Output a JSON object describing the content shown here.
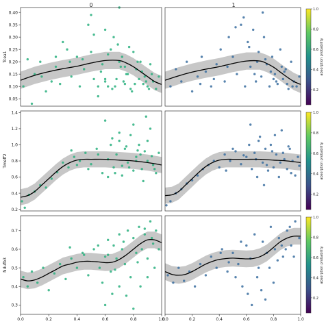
{
  "figure": {
    "column_titles": [
      "0",
      "1"
    ],
    "colorbar_label": "absorption probability",
    "colorbar_ticks": [
      "0.2",
      "0.4",
      "0.6",
      "0.8",
      "1.0"
    ],
    "colors": {
      "fit_line": "#000000",
      "ci_band": "#bdbdbd",
      "col0_points": "#2ab07f",
      "col1_points": "#3b6fa0",
      "colorbar_stops": [
        "#440154",
        "#3b528b",
        "#21918c",
        "#5ec962",
        "#fde725"
      ]
    },
    "x_ticks": [
      "0.0",
      "0.2",
      "0.4",
      "0.6",
      "0.8",
      "1.0"
    ]
  },
  "chart_data": [
    {
      "type": "scatter",
      "row": 0,
      "col": 0,
      "column_title": "0",
      "ylabel": "Tcea1",
      "xlim": [
        0,
        1
      ],
      "ylim": [
        0.02,
        0.42
      ],
      "yticks": [
        "0.05",
        "0.10",
        "0.15",
        "0.20",
        "0.25",
        "0.30",
        "0.35",
        "0.40"
      ],
      "fit": {
        "x": [
          0,
          0.1,
          0.2,
          0.3,
          0.4,
          0.5,
          0.6,
          0.7,
          0.75,
          0.8,
          0.85,
          0.9,
          0.95,
          1.0
        ],
        "y": [
          0.125,
          0.145,
          0.16,
          0.172,
          0.182,
          0.195,
          0.205,
          0.205,
          0.195,
          0.18,
          0.16,
          0.14,
          0.12,
          0.108
        ],
        "band": 0.035
      },
      "points": {
        "x": [
          0.02,
          0.05,
          0.1,
          0.14,
          0.18,
          0.22,
          0.25,
          0.28,
          0.3,
          0.33,
          0.36,
          0.4,
          0.42,
          0.45,
          0.48,
          0.5,
          0.52,
          0.55,
          0.58,
          0.6,
          0.62,
          0.64,
          0.66,
          0.68,
          0.7,
          0.71,
          0.72,
          0.74,
          0.75,
          0.77,
          0.78,
          0.8,
          0.82,
          0.84,
          0.85,
          0.87,
          0.88,
          0.9,
          0.92,
          0.94,
          0.96,
          0.98,
          0.55,
          0.6,
          0.65,
          0.7,
          0.73,
          0.76,
          0.79,
          0.81,
          0.86,
          0.89,
          0.91,
          0.6,
          0.62,
          0.5,
          0.35,
          0.25,
          0.15,
          0.08,
          0.44,
          0.52,
          0.57,
          0.67,
          0.69,
          0.74,
          0.83,
          0.93
        ],
        "y": [
          0.1,
          0.21,
          0.15,
          0.2,
          0.08,
          0.12,
          0.22,
          0.11,
          0.28,
          0.25,
          0.14,
          0.22,
          0.1,
          0.17,
          0.35,
          0.24,
          0.31,
          0.06,
          0.19,
          0.12,
          0.1,
          0.25,
          0.3,
          0.13,
          0.42,
          0.18,
          0.22,
          0.11,
          0.15,
          0.26,
          0.09,
          0.24,
          0.17,
          0.13,
          0.2,
          0.11,
          0.14,
          0.1,
          0.19,
          0.12,
          0.09,
          0.14,
          0.1,
          0.13,
          0.09,
          0.2,
          0.12,
          0.15,
          0.08,
          0.11,
          0.16,
          0.12,
          0.09,
          0.33,
          0.23,
          0.39,
          0.2,
          0.18,
          0.14,
          0.03,
          0.21,
          0.13,
          0.16,
          0.1,
          0.27,
          0.18,
          0.2,
          0.15
        ]
      }
    },
    {
      "type": "scatter",
      "row": 0,
      "col": 1,
      "column_title": "1",
      "ylabel": "",
      "xlim": [
        0,
        1
      ],
      "ylim": [
        0.02,
        0.42
      ],
      "yticks": [],
      "fit": {
        "x": [
          0,
          0.1,
          0.2,
          0.3,
          0.4,
          0.5,
          0.6,
          0.7,
          0.75,
          0.8,
          0.85,
          0.9,
          0.95,
          1.0
        ],
        "y": [
          0.125,
          0.143,
          0.158,
          0.17,
          0.18,
          0.193,
          0.203,
          0.203,
          0.193,
          0.178,
          0.158,
          0.138,
          0.12,
          0.108
        ],
        "band": 0.035
      },
      "points": {
        "x": [
          0.04,
          0.08,
          0.12,
          0.16,
          0.2,
          0.24,
          0.27,
          0.3,
          0.34,
          0.38,
          0.41,
          0.44,
          0.47,
          0.5,
          0.53,
          0.56,
          0.59,
          0.61,
          0.63,
          0.65,
          0.67,
          0.69,
          0.71,
          0.73,
          0.75,
          0.77,
          0.79,
          0.81,
          0.83,
          0.85,
          0.87,
          0.89,
          0.91,
          0.93,
          0.95,
          0.97,
          0.99,
          0.58,
          0.62,
          0.68,
          0.72,
          0.78,
          0.82,
          0.86,
          0.9,
          0.52,
          0.46,
          0.36,
          0.26,
          0.66,
          0.74,
          0.8,
          0.88,
          0.94
        ],
        "y": [
          0.1,
          0.17,
          0.12,
          0.2,
          0.08,
          0.14,
          0.22,
          0.16,
          0.1,
          0.19,
          0.25,
          0.12,
          0.3,
          0.22,
          0.15,
          0.35,
          0.1,
          0.28,
          0.18,
          0.33,
          0.12,
          0.24,
          0.14,
          0.3,
          0.19,
          0.1,
          0.22,
          0.15,
          0.11,
          0.25,
          0.13,
          0.17,
          0.09,
          0.2,
          0.12,
          0.1,
          0.14,
          0.38,
          0.26,
          0.2,
          0.4,
          0.16,
          0.12,
          0.18,
          0.11,
          0.34,
          0.18,
          0.13,
          0.11,
          0.15,
          0.21,
          0.13,
          0.16,
          0.1
        ]
      }
    },
    {
      "type": "scatter",
      "row": 1,
      "col": 0,
      "column_title": "0",
      "ylabel": "Tmeff2",
      "xlim": [
        0,
        1
      ],
      "ylim": [
        0.18,
        1.42
      ],
      "yticks": [
        "0.2",
        "0.4",
        "0.6",
        "0.8",
        "1.0",
        "1.2",
        "1.4"
      ],
      "fit": {
        "x": [
          0,
          0.05,
          0.1,
          0.15,
          0.2,
          0.25,
          0.3,
          0.35,
          0.4,
          0.45,
          0.5,
          0.6,
          0.7,
          0.8,
          0.9,
          1.0
        ],
        "y": [
          0.35,
          0.37,
          0.42,
          0.5,
          0.58,
          0.66,
          0.73,
          0.78,
          0.81,
          0.82,
          0.82,
          0.82,
          0.81,
          0.8,
          0.78,
          0.75
        ],
        "band": 0.1
      },
      "points": {
        "x": [
          0.01,
          0.03,
          0.06,
          0.1,
          0.14,
          0.18,
          0.22,
          0.26,
          0.3,
          0.34,
          0.38,
          0.42,
          0.46,
          0.5,
          0.54,
          0.58,
          0.62,
          0.64,
          0.66,
          0.68,
          0.7,
          0.72,
          0.74,
          0.76,
          0.78,
          0.8,
          0.82,
          0.84,
          0.86,
          0.88,
          0.9,
          0.92,
          0.94,
          0.96,
          0.98,
          0.6,
          0.65,
          0.7,
          0.75,
          0.8,
          0.85,
          0.9,
          0.95,
          0.62,
          0.72,
          0.82,
          0.87,
          0.93,
          0.55,
          0.48,
          0.4,
          0.36,
          0.67,
          0.77,
          0.83,
          0.89
        ],
        "y": [
          0.3,
          0.22,
          0.38,
          0.42,
          0.5,
          0.47,
          0.58,
          0.66,
          0.78,
          0.72,
          0.85,
          0.8,
          0.9,
          0.76,
          0.95,
          0.65,
          0.82,
          1.0,
          0.72,
          0.88,
          1.05,
          0.62,
          0.95,
          0.78,
          1.12,
          0.68,
          0.85,
          1.0,
          0.7,
          0.92,
          0.8,
          1.2,
          0.75,
          0.65,
          0.9,
          1.3,
          1.08,
          1.15,
          0.98,
          1.25,
          0.88,
          1.05,
          0.7,
          0.6,
          0.74,
          0.8,
          0.55,
          0.86,
          0.88,
          0.7,
          0.75,
          0.93,
          0.65,
          0.72,
          0.93,
          1.35
        ]
      }
    },
    {
      "type": "scatter",
      "row": 1,
      "col": 1,
      "column_title": "1",
      "ylabel": "",
      "xlim": [
        0,
        1
      ],
      "ylim": [
        0.18,
        1.42
      ],
      "yticks": [],
      "fit": {
        "x": [
          0,
          0.05,
          0.1,
          0.15,
          0.2,
          0.25,
          0.3,
          0.35,
          0.4,
          0.45,
          0.5,
          0.6,
          0.7,
          0.8,
          0.9,
          1.0
        ],
        "y": [
          0.37,
          0.38,
          0.42,
          0.5,
          0.58,
          0.66,
          0.73,
          0.78,
          0.81,
          0.82,
          0.82,
          0.82,
          0.82,
          0.81,
          0.8,
          0.78
        ],
        "band": 0.1
      },
      "points": {
        "x": [
          0.01,
          0.04,
          0.08,
          0.12,
          0.16,
          0.2,
          0.24,
          0.28,
          0.32,
          0.36,
          0.4,
          0.44,
          0.48,
          0.52,
          0.56,
          0.6,
          0.62,
          0.64,
          0.66,
          0.68,
          0.7,
          0.72,
          0.74,
          0.76,
          0.78,
          0.8,
          0.82,
          0.84,
          0.86,
          0.88,
          0.9,
          0.92,
          0.94,
          0.96,
          0.98,
          0.63,
          0.69,
          0.75,
          0.81,
          0.87,
          0.93,
          0.67,
          0.73,
          0.79,
          0.85,
          0.91,
          0.58,
          0.5,
          0.45,
          0.99
        ],
        "y": [
          0.25,
          0.3,
          0.4,
          0.45,
          0.52,
          0.56,
          0.62,
          0.7,
          0.75,
          0.8,
          0.72,
          0.88,
          0.8,
          0.92,
          0.76,
          0.85,
          1.0,
          0.7,
          0.9,
          0.6,
          1.1,
          0.78,
          0.95,
          0.68,
          1.0,
          0.72,
          0.88,
          0.6,
          1.18,
          0.82,
          0.7,
          0.95,
          0.8,
          0.62,
          0.85,
          1.25,
          1.05,
          0.75,
          1.12,
          0.9,
          0.65,
          0.82,
          0.5,
          0.92,
          0.78,
          0.98,
          0.87,
          0.95,
          0.68,
          0.74
        ]
      }
    },
    {
      "type": "scatter",
      "row": 2,
      "col": 0,
      "column_title": "0",
      "ylabel": "Ndufb3",
      "xlim": [
        0,
        1
      ],
      "ylim": [
        0.25,
        0.78
      ],
      "yticks": [
        "0.3",
        "0.4",
        "0.5",
        "0.6",
        "0.7"
      ],
      "fit": {
        "x": [
          0,
          0.05,
          0.1,
          0.15,
          0.2,
          0.25,
          0.3,
          0.35,
          0.4,
          0.45,
          0.5,
          0.55,
          0.6,
          0.65,
          0.7,
          0.75,
          0.8,
          0.85,
          0.9,
          0.95,
          1.0
        ],
        "y": [
          0.44,
          0.43,
          0.435,
          0.45,
          0.47,
          0.49,
          0.51,
          0.52,
          0.53,
          0.535,
          0.535,
          0.532,
          0.528,
          0.53,
          0.545,
          0.57,
          0.6,
          0.63,
          0.65,
          0.65,
          0.635
        ],
        "band": 0.045
      },
      "points": {
        "x": [
          0.02,
          0.05,
          0.08,
          0.12,
          0.16,
          0.2,
          0.24,
          0.28,
          0.32,
          0.36,
          0.4,
          0.44,
          0.48,
          0.52,
          0.56,
          0.58,
          0.6,
          0.62,
          0.64,
          0.66,
          0.68,
          0.7,
          0.72,
          0.74,
          0.76,
          0.78,
          0.8,
          0.82,
          0.84,
          0.86,
          0.88,
          0.9,
          0.92,
          0.94,
          0.96,
          0.98,
          0.6,
          0.65,
          0.7,
          0.75,
          0.8,
          0.85,
          0.9,
          0.95,
          0.55,
          0.62,
          0.67,
          0.73,
          0.83,
          0.88,
          0.93,
          0.45,
          0.35
        ],
        "y": [
          0.45,
          0.4,
          0.48,
          0.42,
          0.5,
          0.38,
          0.47,
          0.52,
          0.44,
          0.55,
          0.5,
          0.58,
          0.46,
          0.6,
          0.5,
          0.42,
          0.56,
          0.65,
          0.48,
          0.62,
          0.55,
          0.68,
          0.6,
          0.52,
          0.7,
          0.45,
          0.66,
          0.58,
          0.72,
          0.6,
          0.68,
          0.55,
          0.75,
          0.63,
          0.7,
          0.6,
          0.3,
          0.36,
          0.4,
          0.35,
          0.28,
          0.4,
          0.45,
          0.5,
          0.62,
          0.57,
          0.49,
          0.64,
          0.53,
          0.71,
          0.66,
          0.57,
          0.61
        ]
      }
    },
    {
      "type": "scatter",
      "row": 2,
      "col": 1,
      "column_title": "1",
      "ylabel": "",
      "xlim": [
        0,
        1
      ],
      "ylim": [
        0.25,
        0.78
      ],
      "yticks": [],
      "fit": {
        "x": [
          0,
          0.05,
          0.1,
          0.15,
          0.2,
          0.25,
          0.3,
          0.35,
          0.4,
          0.45,
          0.5,
          0.55,
          0.6,
          0.65,
          0.7,
          0.75,
          0.8,
          0.85,
          0.9,
          0.95,
          1.0
        ],
        "y": [
          0.48,
          0.465,
          0.46,
          0.465,
          0.48,
          0.5,
          0.52,
          0.535,
          0.545,
          0.55,
          0.552,
          0.55,
          0.548,
          0.55,
          0.56,
          0.58,
          0.61,
          0.64,
          0.66,
          0.67,
          0.67
        ],
        "band": 0.045
      },
      "points": {
        "x": [
          0.02,
          0.06,
          0.1,
          0.14,
          0.18,
          0.22,
          0.26,
          0.3,
          0.34,
          0.38,
          0.42,
          0.46,
          0.5,
          0.54,
          0.57,
          0.6,
          0.63,
          0.66,
          0.69,
          0.72,
          0.75,
          0.78,
          0.81,
          0.84,
          0.87,
          0.9,
          0.93,
          0.96,
          0.99,
          0.61,
          0.64,
          0.68,
          0.71,
          0.74,
          0.77,
          0.8,
          0.83,
          0.86,
          0.89,
          0.92,
          0.95,
          0.56,
          0.52,
          0.47,
          0.41
        ],
        "y": [
          0.46,
          0.42,
          0.5,
          0.43,
          0.48,
          0.4,
          0.52,
          0.46,
          0.56,
          0.5,
          0.6,
          0.48,
          0.58,
          0.52,
          0.4,
          0.62,
          0.55,
          0.68,
          0.5,
          0.64,
          0.58,
          0.72,
          0.6,
          0.66,
          0.56,
          0.7,
          0.62,
          0.75,
          0.66,
          0.36,
          0.3,
          0.45,
          0.38,
          0.33,
          0.5,
          0.42,
          0.54,
          0.62,
          0.6,
          0.72,
          0.56,
          0.64,
          0.45,
          0.53,
          0.58
        ]
      }
    }
  ]
}
